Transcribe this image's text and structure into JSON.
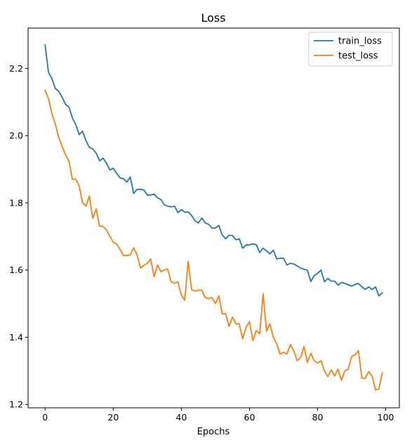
{
  "chart_data": {
    "type": "line",
    "title": "Loss",
    "xlabel": "Epochs",
    "ylabel": "",
    "xlim": [
      -5,
      104
    ],
    "ylim": [
      1.19,
      2.32
    ],
    "xticks": [
      0,
      20,
      40,
      60,
      80,
      100
    ],
    "yticks": [
      1.2,
      1.4,
      1.6,
      1.8,
      2.0,
      2.2
    ],
    "grid": false,
    "legend_position": "top-right",
    "x": [
      0,
      1,
      2,
      3,
      4,
      5,
      6,
      7,
      8,
      9,
      10,
      11,
      12,
      13,
      14,
      15,
      16,
      17,
      18,
      19,
      20,
      21,
      22,
      23,
      24,
      25,
      26,
      27,
      28,
      29,
      30,
      31,
      32,
      33,
      34,
      35,
      36,
      37,
      38,
      39,
      40,
      41,
      42,
      43,
      44,
      45,
      46,
      47,
      48,
      49,
      50,
      51,
      52,
      53,
      54,
      55,
      56,
      57,
      58,
      59,
      60,
      61,
      62,
      63,
      64,
      65,
      66,
      67,
      68,
      69,
      70,
      71,
      72,
      73,
      74,
      75,
      76,
      77,
      78,
      79,
      80,
      81,
      82,
      83,
      84,
      85,
      86,
      87,
      88,
      89,
      90,
      91,
      92,
      93,
      94,
      95,
      96,
      97,
      98,
      99
    ],
    "series": [
      {
        "name": "train_loss",
        "color": "#1f77b4",
        "values": [
          2.27,
          2.188,
          2.17,
          2.14,
          2.132,
          2.114,
          2.093,
          2.085,
          2.053,
          2.033,
          2.003,
          2.013,
          1.985,
          1.965,
          1.96,
          1.948,
          1.925,
          1.933,
          1.918,
          1.898,
          1.903,
          1.888,
          1.874,
          1.872,
          1.862,
          1.877,
          1.828,
          1.84,
          1.84,
          1.838,
          1.823,
          1.823,
          1.826,
          1.815,
          1.81,
          1.794,
          1.79,
          1.788,
          1.79,
          1.771,
          1.78,
          1.772,
          1.773,
          1.762,
          1.747,
          1.74,
          1.755,
          1.74,
          1.736,
          1.725,
          1.725,
          1.733,
          1.704,
          1.693,
          1.703,
          1.703,
          1.69,
          1.693,
          1.665,
          1.675,
          1.675,
          1.678,
          1.675,
          1.652,
          1.665,
          1.657,
          1.648,
          1.659,
          1.633,
          1.635,
          1.635,
          1.615,
          1.62,
          1.618,
          1.612,
          1.606,
          1.602,
          1.6,
          1.566,
          1.583,
          1.59,
          1.6,
          1.565,
          1.575,
          1.567,
          1.567,
          1.555,
          1.563,
          1.56,
          1.556,
          1.552,
          1.557,
          1.56,
          1.55,
          1.542,
          1.55,
          1.542,
          1.55,
          1.523,
          1.532
        ]
      },
      {
        "name": "test_loss",
        "color": "#ff7f0e",
        "values": [
          2.135,
          2.11,
          2.065,
          2.035,
          1.995,
          1.968,
          1.942,
          1.925,
          1.87,
          1.87,
          1.85,
          1.8,
          1.79,
          1.82,
          1.754,
          1.782,
          1.73,
          1.73,
          1.72,
          1.7,
          1.683,
          1.677,
          1.662,
          1.643,
          1.643,
          1.645,
          1.666,
          1.645,
          1.606,
          1.614,
          1.62,
          1.633,
          1.58,
          1.615,
          1.595,
          1.6,
          1.603,
          1.565,
          1.56,
          1.565,
          1.525,
          1.51,
          1.626,
          1.542,
          1.537,
          1.54,
          1.54,
          1.518,
          1.515,
          1.518,
          1.5,
          1.523,
          1.47,
          1.47,
          1.432,
          1.46,
          1.44,
          1.44,
          1.395,
          1.43,
          1.446,
          1.39,
          1.42,
          1.41,
          1.529,
          1.418,
          1.44,
          1.4,
          1.38,
          1.35,
          1.355,
          1.35,
          1.378,
          1.36,
          1.33,
          1.34,
          1.372,
          1.325,
          1.352,
          1.33,
          1.323,
          1.33,
          1.3,
          1.283,
          1.303,
          1.285,
          1.305,
          1.272,
          1.3,
          1.305,
          1.343,
          1.348,
          1.36,
          1.278,
          1.277,
          1.298,
          1.284,
          1.243,
          1.246,
          1.294
        ]
      }
    ]
  }
}
